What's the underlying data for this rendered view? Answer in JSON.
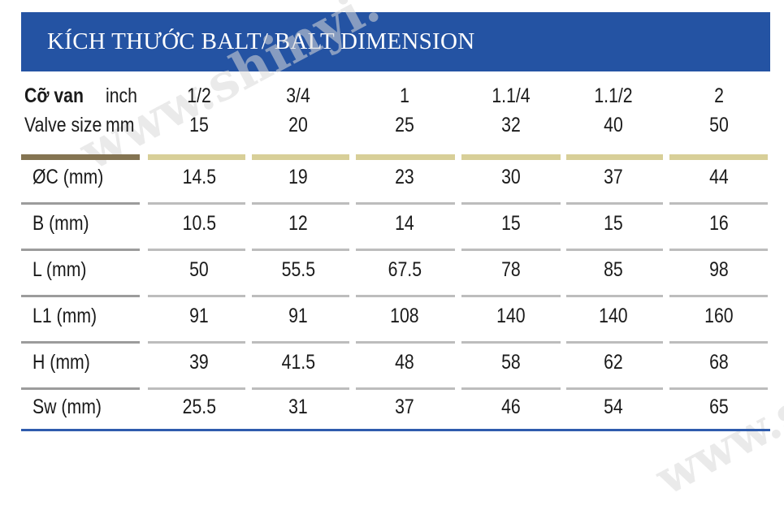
{
  "title": "KÍCH THƯỚC BALT/ BALT DIMENSION",
  "watermark": "www.shinyi.",
  "header": {
    "label_vn": "Cỡ van",
    "label_en": "Valve size",
    "unit_inch": "inch",
    "unit_mm": "mm",
    "columns": [
      {
        "inch": "1/2",
        "mm": "15"
      },
      {
        "inch": "3/4",
        "mm": "20"
      },
      {
        "inch": "1",
        "mm": "25"
      },
      {
        "inch": "1.1/4",
        "mm": "32"
      },
      {
        "inch": "1.1/2",
        "mm": "40"
      },
      {
        "inch": "2",
        "mm": "50"
      }
    ]
  },
  "rows": [
    {
      "label": "ØC (mm)",
      "values": [
        "14.5",
        "19",
        "23",
        "30",
        "37",
        "44"
      ]
    },
    {
      "label": "B (mm)",
      "values": [
        "10.5",
        "12",
        "14",
        "15",
        "15",
        "16"
      ]
    },
    {
      "label": "L (mm)",
      "values": [
        "50",
        "55.5",
        "67.5",
        "78",
        "85",
        "98"
      ]
    },
    {
      "label": "L1 (mm)",
      "values": [
        "91",
        "91",
        "108",
        "140",
        "140",
        "160"
      ]
    },
    {
      "label": "H (mm)",
      "values": [
        "39",
        "41.5",
        "48",
        "58",
        "62",
        "68"
      ]
    },
    {
      "label": "Sw (mm)",
      "values": [
        "25.5",
        "31",
        "37",
        "46",
        "54",
        "65"
      ]
    }
  ],
  "colors": {
    "title_bg": "#2453a3",
    "accent_bar": "#d8cf98",
    "label_bar": "#847452"
  }
}
